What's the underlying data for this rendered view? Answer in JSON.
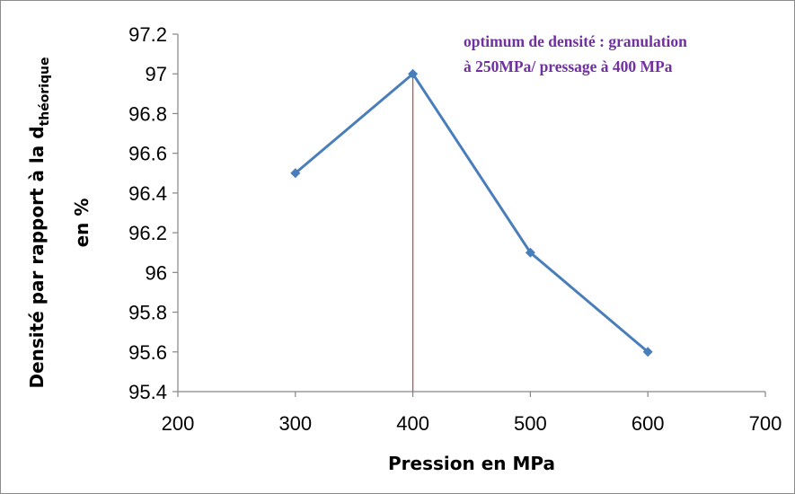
{
  "chart_data": {
    "type": "line",
    "xlabel": "Pression en MPa",
    "ylabel_main": "Densité par rapport à la d",
    "ylabel_sub": "théorique",
    "ylabel_line2": "en %",
    "xlim": [
      200,
      700
    ],
    "ylim": [
      95.4,
      97.2
    ],
    "x_ticks": [
      "200",
      "300",
      "400",
      "500",
      "600",
      "700"
    ],
    "y_ticks": [
      "95.4",
      "95.6",
      "95.8",
      "96",
      "96.2",
      "96.4",
      "96.6",
      "96.8",
      "97",
      "97.2"
    ],
    "grid": false,
    "series": [
      {
        "color": "#4a7ebb",
        "x": [
          300,
          400,
          500,
          600
        ],
        "y": [
          96.5,
          97.0,
          96.1,
          95.6
        ]
      }
    ],
    "reference_line": {
      "x": 400,
      "color": "#c0504d"
    },
    "annotation": {
      "line1": "optimum de densité :  granulation",
      "line2": "à 250MPa/ pressage à 400 MPa",
      "color": "#7030a0"
    }
  }
}
